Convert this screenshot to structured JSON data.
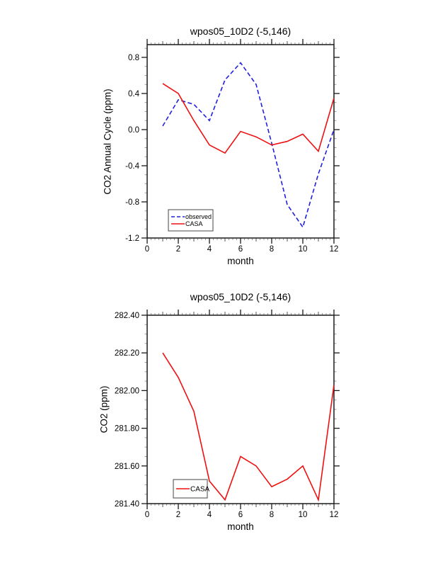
{
  "page": {
    "background": "#ffffff"
  },
  "chart_data": [
    {
      "type": "line",
      "title": "wpos05_10D2 (-5,146)",
      "xlabel": "month",
      "ylabel": "CO2 Annual Cycle (ppm)",
      "x": [
        1,
        2,
        3,
        4,
        5,
        6,
        7,
        8,
        9,
        10,
        11,
        12
      ],
      "series": [
        {
          "name": "observed",
          "color": "#2020e0",
          "style": "dashed",
          "values": [
            0.04,
            0.33,
            0.28,
            0.1,
            0.55,
            0.74,
            0.5,
            -0.15,
            -0.83,
            -1.08,
            -0.49,
            0.0
          ]
        },
        {
          "name": "CASA",
          "color": "#ee1111",
          "style": "solid",
          "values": [
            0.51,
            0.4,
            0.1,
            -0.17,
            -0.26,
            -0.02,
            -0.08,
            -0.17,
            -0.13,
            -0.05,
            -0.24,
            0.35
          ]
        }
      ],
      "xlim": [
        0,
        12
      ],
      "ylim": [
        -1.2,
        0.941
      ],
      "xticks": {
        "major": [
          0,
          2,
          4,
          6,
          8,
          10,
          12
        ],
        "labels": [
          "0",
          "2",
          "4",
          "6",
          "8",
          "10",
          "12"
        ],
        "minor_step": 0.25
      },
      "yticks": {
        "major": [
          0.8,
          0.4,
          0.0,
          -0.4,
          -0.8,
          -1.2
        ],
        "labels": [
          "0.8",
          "0.4",
          "0.0",
          "-0.4",
          "-0.8",
          "-1.2"
        ],
        "minor_step": 0.1
      },
      "legend": {
        "position": "lower left",
        "entries": [
          "observed",
          "CASA"
        ]
      },
      "grid": false
    },
    {
      "type": "line",
      "title": "wpos05_10D2 (-5,146)",
      "xlabel": "month",
      "ylabel": "CO2 (ppm)",
      "x": [
        1,
        2,
        3,
        4,
        5,
        6,
        7,
        8,
        9,
        10,
        11,
        12
      ],
      "series": [
        {
          "name": "CASA",
          "color": "#ee1111",
          "style": "solid",
          "values": [
            282.2,
            282.07,
            281.89,
            281.52,
            281.42,
            281.65,
            281.6,
            281.49,
            281.53,
            281.6,
            281.42,
            282.03
          ]
        }
      ],
      "xlim": [
        0,
        12
      ],
      "ylim": [
        281.4,
        282.4
      ],
      "xticks": {
        "major": [
          0,
          2,
          4,
          6,
          8,
          10,
          12
        ],
        "labels": [
          "0",
          "2",
          "4",
          "6",
          "8",
          "10",
          "12"
        ],
        "minor_step": 0.25
      },
      "yticks": {
        "major": [
          282.4,
          282.2,
          282.0,
          281.8,
          281.6,
          281.4
        ],
        "labels": [
          "282.40",
          "282.20",
          "282.00",
          "281.80",
          "281.60",
          "281.40"
        ],
        "minor_step": 0.05
      },
      "legend": {
        "position": "lower left",
        "entries": [
          "CASA"
        ]
      },
      "grid": false
    }
  ],
  "colors": {
    "frame": "#1a1a1a",
    "major_tick": "#1a1a1a",
    "mid_tick": "#555555",
    "minor_tick": "#9a9a9a",
    "observed_line": "#2020e0",
    "casa_line": "#ee1111"
  }
}
